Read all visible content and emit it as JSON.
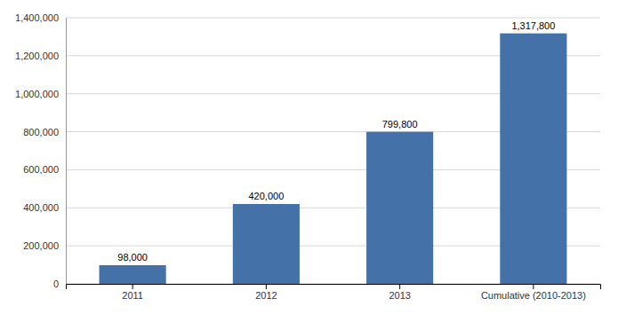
{
  "chart_data": {
    "type": "bar",
    "categories": [
      "2011",
      "2012",
      "2013",
      "Cumulative (2010-2013)"
    ],
    "values": [
      98000,
      420000,
      799800,
      1317800
    ],
    "value_labels": [
      "98,000",
      "420,000",
      "799,800",
      "1,317,800"
    ],
    "data_labels": true,
    "color": "#4472a8",
    "ylim": [
      0,
      1400000
    ],
    "yticks": [
      0,
      {
        "value": 200000,
        "label": "200,000"
      },
      {
        "value": 400000,
        "label": "400,000"
      },
      {
        "value": 600000,
        "label": "600,000"
      },
      {
        "value": 800000,
        "label": "800,000"
      },
      {
        "value": 1000000,
        "label": "1,000,000"
      },
      {
        "value": 1200000,
        "label": "1,200,000"
      },
      {
        "value": 1400000,
        "label": "1,400,000"
      }
    ],
    "grid": true
  }
}
